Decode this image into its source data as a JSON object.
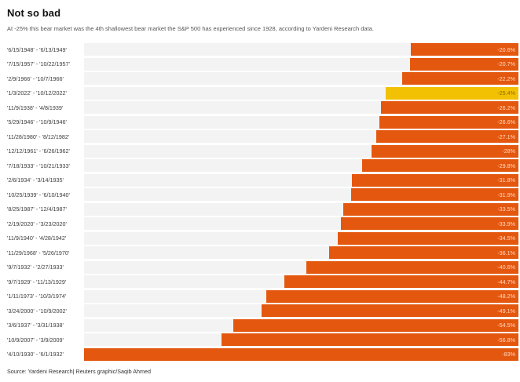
{
  "header": {
    "title": "Not so bad",
    "subtitle": "At -25% this bear market was the 4th shallowest bear market the S&P 500 has experienced since 1928, according to Yardeni Research data."
  },
  "chart_data": {
    "type": "bar",
    "orientation": "horizontal",
    "value_axis": "percent decline, bars right-aligned at 0",
    "xlim": [
      -83,
      0
    ],
    "grid": false,
    "legend": "none",
    "colors": {
      "bar": "#e4570e",
      "highlight_bar": "#f3c103",
      "track": "#f3f3f3",
      "value_label_on_bar": "#ffd8c2",
      "value_label_on_highlight": "#8a6d00"
    },
    "rows": [
      {
        "range": "'6/15/1948' - '6/13/1949'",
        "value": -20.6,
        "label": "-20.6%",
        "highlight": false
      },
      {
        "range": "'7/15/1957' - '10/22/1957'",
        "value": -20.7,
        "label": "-20.7%",
        "highlight": false
      },
      {
        "range": "'2/9/1966' - '10/7/1966'",
        "value": -22.2,
        "label": "-22.2%",
        "highlight": false
      },
      {
        "range": "'1/3/2022' - '10/12/2022'",
        "value": -25.4,
        "label": "-25.4%",
        "highlight": true
      },
      {
        "range": "'11/9/1938' - '4/8/1939'",
        "value": -26.2,
        "label": "-26.2%",
        "highlight": false
      },
      {
        "range": "'5/29/1946' - '10/9/1946'",
        "value": -26.6,
        "label": "-26.6%",
        "highlight": false
      },
      {
        "range": "'11/28/1980' - '8/12/1982'",
        "value": -27.1,
        "label": "-27.1%",
        "highlight": false
      },
      {
        "range": "'12/12/1961' - '6/26/1962'",
        "value": -28,
        "label": "-28%",
        "highlight": false
      },
      {
        "range": "'7/18/1933' - '10/21/1933'",
        "value": -29.8,
        "label": "-29.8%",
        "highlight": false
      },
      {
        "range": "'2/6/1934' - '3/14/1935'",
        "value": -31.8,
        "label": "-31.8%",
        "highlight": false
      },
      {
        "range": "'10/25/1939' - '6/10/1940'",
        "value": -31.9,
        "label": "-31.9%",
        "highlight": false
      },
      {
        "range": "'8/25/1987' - '12/4/1987'",
        "value": -33.5,
        "label": "-33.5%",
        "highlight": false
      },
      {
        "range": "'2/19/2020' - '3/23/2020'",
        "value": -33.9,
        "label": "-33.9%",
        "highlight": false
      },
      {
        "range": "'11/9/1940' - '4/28/1942'",
        "value": -34.5,
        "label": "-34.5%",
        "highlight": false
      },
      {
        "range": "'11/29/1968' - '5/26/1970'",
        "value": -36.1,
        "label": "-36.1%",
        "highlight": false
      },
      {
        "range": "'9/7/1932' - '2/27/1933'",
        "value": -40.6,
        "label": "-40.6%",
        "highlight": false
      },
      {
        "range": "'9/7/1929' - '11/13/1929'",
        "value": -44.7,
        "label": "-44.7%",
        "highlight": false
      },
      {
        "range": "'1/11/1973' - '10/3/1974'",
        "value": -48.2,
        "label": "-48.2%",
        "highlight": false
      },
      {
        "range": "'3/24/2000' - '10/9/2002'",
        "value": -49.1,
        "label": "-49.1%",
        "highlight": false
      },
      {
        "range": "'3/6/1937' - '3/31/1938'",
        "value": -54.5,
        "label": "-54.5%",
        "highlight": false
      },
      {
        "range": "'10/9/2007' - '3/9/2009'",
        "value": -56.8,
        "label": "-56.8%",
        "highlight": false
      },
      {
        "range": "'4/10/1930' - '6/1/1932'",
        "value": -83,
        "label": "-83%",
        "highlight": false
      }
    ]
  },
  "footer": {
    "source": "Source: Yardeni Research| Reuters graphic/Saqib Ahmed"
  }
}
